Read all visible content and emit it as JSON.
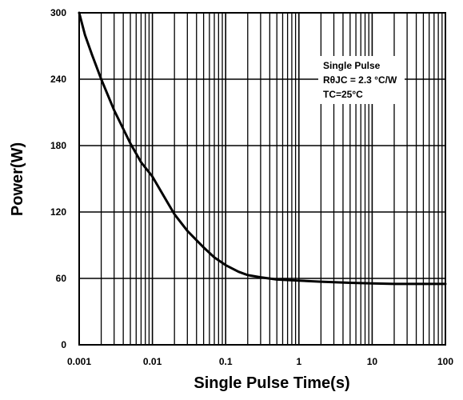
{
  "chart_data": {
    "type": "line",
    "title": "",
    "xlabel": "Single Pulse Time(s)",
    "ylabel": "Power(W)",
    "x_scale": "log",
    "xlim": [
      0.001,
      100
    ],
    "ylim": [
      0,
      300
    ],
    "x_ticks": [
      "0.001",
      "0.01",
      "0.1",
      "1",
      "10",
      "100"
    ],
    "x_tick_values": [
      0.001,
      0.01,
      0.1,
      1,
      10,
      100
    ],
    "y_ticks": [
      "0",
      "60",
      "120",
      "180",
      "240",
      "300"
    ],
    "y_tick_values": [
      0,
      60,
      120,
      180,
      240,
      300
    ],
    "grid": true,
    "annotations": [
      "Single Pulse",
      "RθJC = 2.3 °C/W",
      "TC=25°C"
    ],
    "series": [
      {
        "x": [
          0.001,
          0.0012,
          0.0015,
          0.002,
          0.003,
          0.005,
          0.007,
          0.01,
          0.015,
          0.02,
          0.03,
          0.05,
          0.07,
          0.1,
          0.15,
          0.2,
          0.3,
          0.5,
          1,
          2,
          5,
          10,
          20,
          50,
          100
        ],
        "y": [
          300,
          280,
          262,
          240,
          212,
          182,
          165,
          152,
          132,
          118,
          103,
          88,
          79,
          72,
          66,
          63,
          61,
          59,
          58,
          57,
          56,
          55.5,
          55,
          55,
          55
        ]
      }
    ]
  }
}
